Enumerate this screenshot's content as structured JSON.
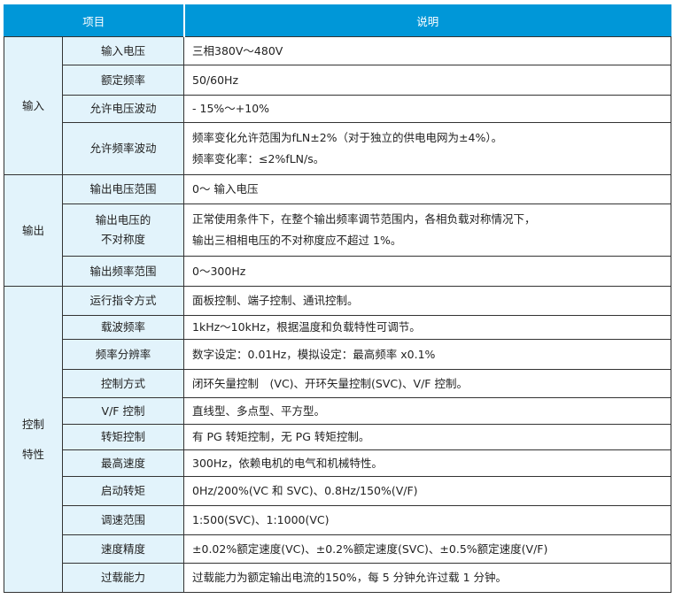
{
  "header": {
    "item": "项目",
    "desc": "说明"
  },
  "colors": {
    "header_bg": "#0097d8",
    "label_bg": "#e2f3fb"
  },
  "groups": [
    {
      "label": [
        "输入"
      ],
      "rows": [
        {
          "item": [
            "输入电压"
          ],
          "desc": [
            "三相380V～480V"
          ]
        },
        {
          "item": [
            "额定频率"
          ],
          "desc": [
            "50/60Hz"
          ]
        },
        {
          "item": [
            "允许电压波动"
          ],
          "desc": [
            "- 15%～+10%"
          ]
        },
        {
          "item": [
            "允许频率波动"
          ],
          "desc": [
            "频率变化允许范围为fLN±2%（对于独立的供电电网为±4%）。",
            "频率变化率：≤2%fLN/s。"
          ]
        }
      ]
    },
    {
      "label": [
        "输出"
      ],
      "rows": [
        {
          "item": [
            "输出电压范围"
          ],
          "desc": [
            "0～ 输入电压"
          ]
        },
        {
          "item": [
            "输出电压的",
            "不对称度"
          ],
          "desc": [
            "正常使用条件下，在整个输出频率调节范围内，各相负载对称情况下，",
            "输出三相相电压的不对称度应不超过 1%。"
          ]
        },
        {
          "item": [
            "输出频率范围"
          ],
          "desc": [
            "0～300Hz"
          ]
        }
      ]
    },
    {
      "label": [
        "控制",
        "特性"
      ],
      "rows": [
        {
          "item": [
            "运行指令方式"
          ],
          "desc": [
            "面板控制、端子控制、通讯控制。"
          ]
        },
        {
          "item": [
            "载波频率"
          ],
          "desc": [
            "1kHz～10kHz，根据温度和负载特性可调节。"
          ]
        },
        {
          "item": [
            "频率分辨率"
          ],
          "desc": [
            "数字设定：0.01Hz，模拟设定：最高频率 x0.1%"
          ]
        },
        {
          "item": [
            "控制方式"
          ],
          "desc": [
            "闭环矢量控制　(VC)、开环矢量控制(SVC)、V/F 控制。"
          ]
        },
        {
          "item": [
            "V/F 控制"
          ],
          "desc": [
            "直线型、多点型、平方型。"
          ]
        },
        {
          "item": [
            "转矩控制"
          ],
          "desc": [
            "有 PG 转矩控制，无 PG 转矩控制。"
          ]
        },
        {
          "item": [
            "最高速度"
          ],
          "desc": [
            "300Hz，依赖电机的电气和机械特性。"
          ]
        },
        {
          "item": [
            "启动转矩"
          ],
          "desc": [
            "0Hz/200%(VC 和 SVC)、0.8Hz/150%(V/F)"
          ]
        },
        {
          "item": [
            "调速范围"
          ],
          "desc": [
            "1:500(SVC)、1:1000(VC)"
          ]
        },
        {
          "item": [
            "速度精度"
          ],
          "desc": [
            "±0.02%额定速度(VC)、±0.2%额定速度(SVC)、±0.5%额定速度(V/F)"
          ]
        },
        {
          "item": [
            "过载能力"
          ],
          "desc": [
            "过载能力为额定输出电流的150%，每 5 分钟允许过载 1 分钟。"
          ]
        }
      ]
    }
  ]
}
